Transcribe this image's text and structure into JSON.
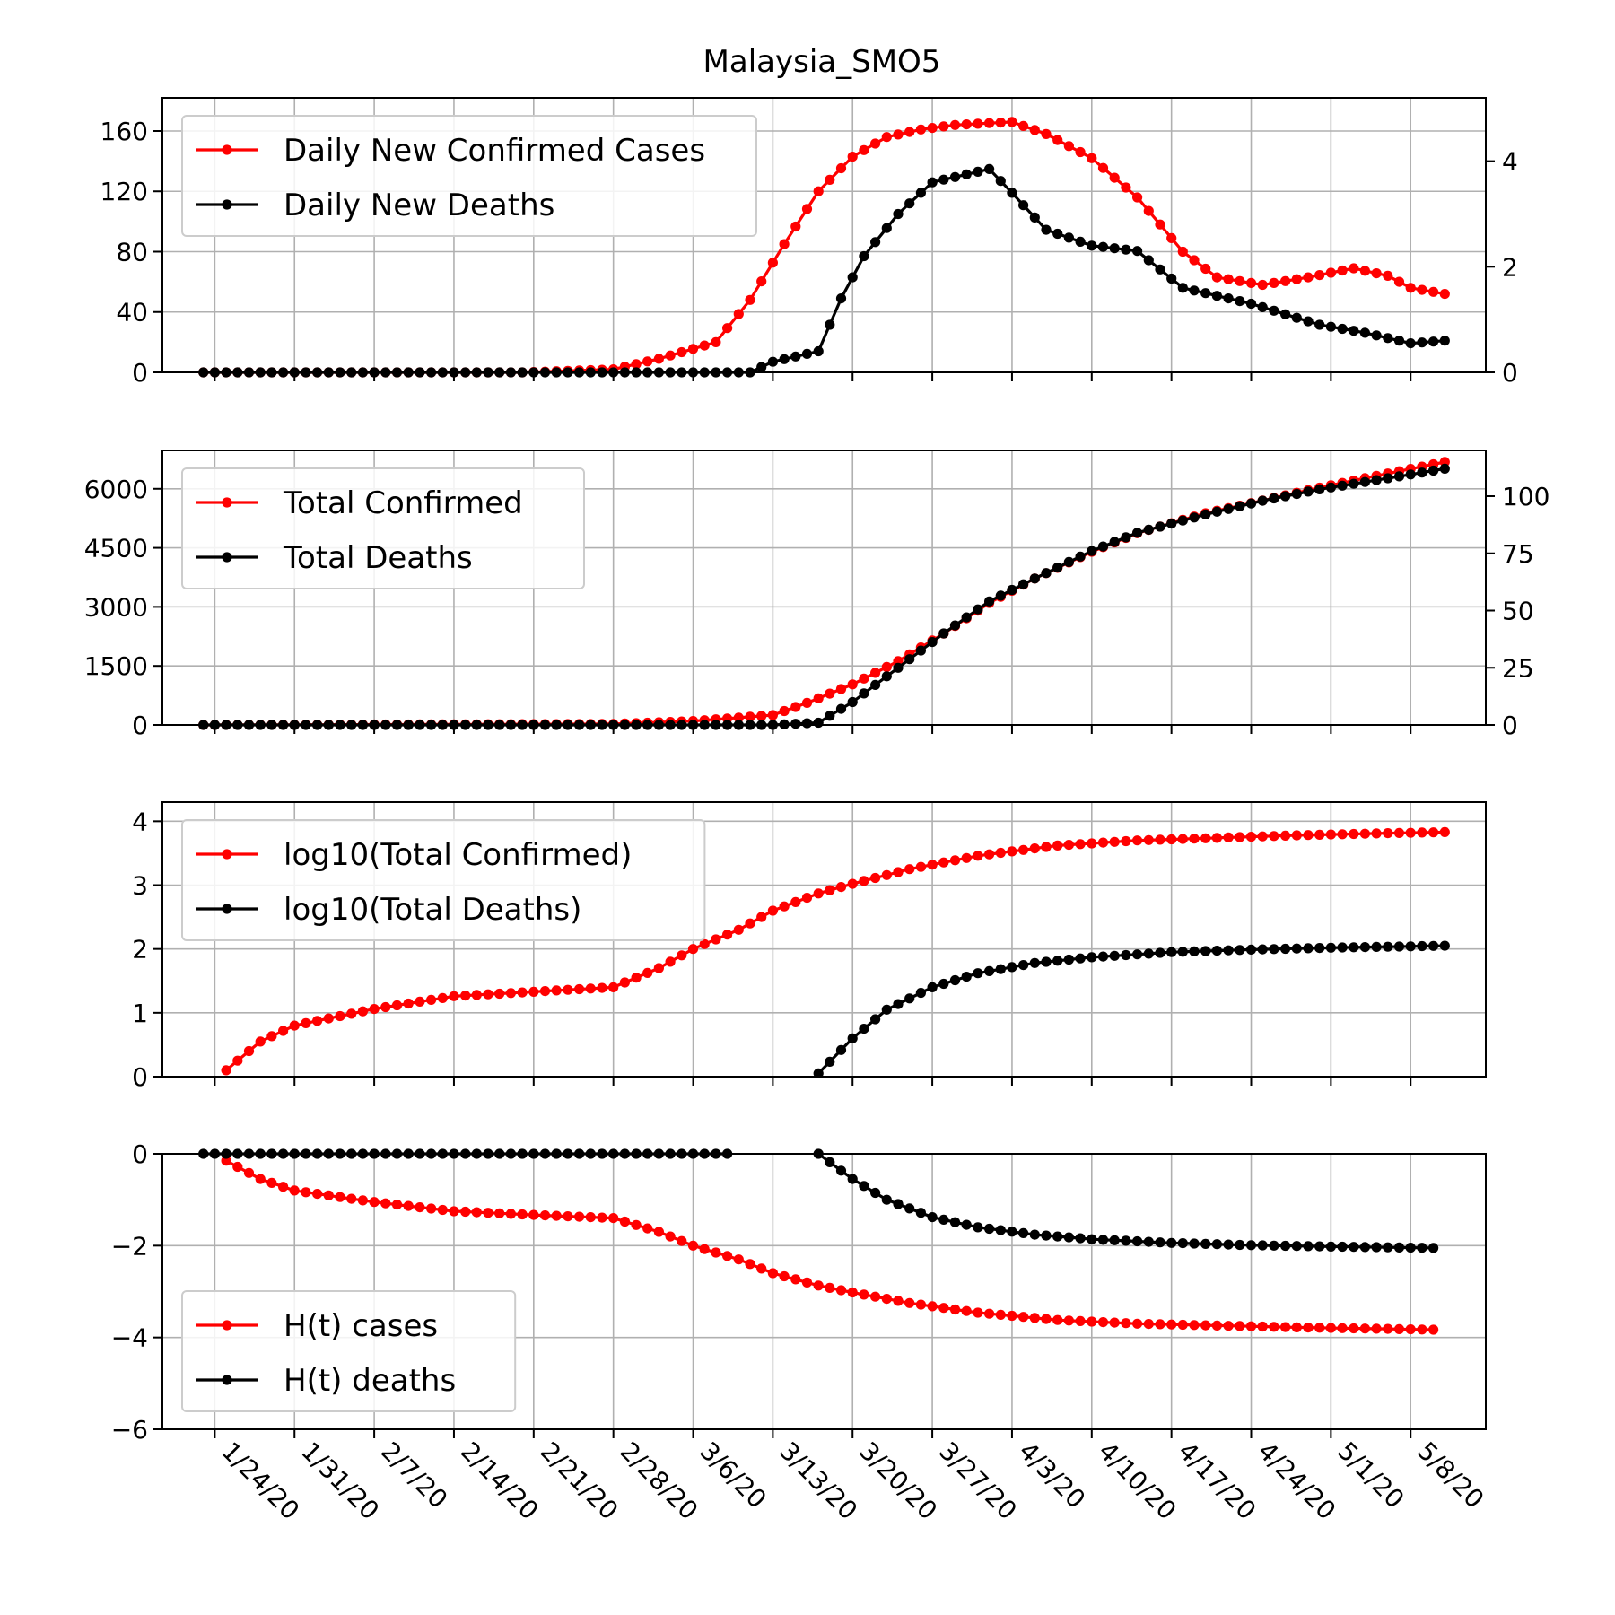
{
  "chart_data": [
    {
      "type": "line",
      "title": "Malaysia_SMO5",
      "x": {
        "start": "1/23/20",
        "end": "5/11/20",
        "tick_labels": [
          "1/24/20",
          "1/31/20",
          "2/7/20",
          "2/14/20",
          "2/21/20",
          "2/28/20",
          "3/6/20",
          "3/13/20",
          "3/20/20",
          "3/27/20",
          "4/3/20",
          "4/10/20",
          "4/17/20",
          "4/24/20",
          "5/1/20",
          "5/8/20"
        ]
      },
      "legend_loc": "upper left",
      "grid": true,
      "y_left": {
        "ylim": [
          0,
          182
        ],
        "ticks": [
          "0",
          "40",
          "80",
          "120",
          "160"
        ]
      },
      "y_right": {
        "ylim": [
          0,
          5.2
        ],
        "ticks": [
          "0",
          "2",
          "4"
        ]
      },
      "series": [
        {
          "name": "Daily New Confirmed Cases",
          "color": "#ff0000",
          "axis": "left",
          "keypoints": [
            [
              "1/23/20",
              0
            ],
            [
              "2/20/20",
              0
            ],
            [
              "2/28/20",
              2
            ],
            [
              "3/3/20",
              9
            ],
            [
              "3/8/20",
              20
            ],
            [
              "3/11/20",
              48
            ],
            [
              "3/14/20",
              85
            ],
            [
              "3/17/20",
              120
            ],
            [
              "3/20/20",
              143
            ],
            [
              "3/23/20",
              156
            ],
            [
              "3/26/20",
              161
            ],
            [
              "3/29/20",
              164
            ],
            [
              "4/3/20",
              166
            ],
            [
              "4/6/20",
              158
            ],
            [
              "4/10/20",
              142
            ],
            [
              "4/14/20",
              116
            ],
            [
              "4/18/20",
              80
            ],
            [
              "4/21/20",
              63
            ],
            [
              "4/25/20",
              58
            ],
            [
              "4/29/20",
              63
            ],
            [
              "5/3/20",
              69
            ],
            [
              "5/6/20",
              64
            ],
            [
              "5/8/20",
              56
            ],
            [
              "5/11/20",
              52
            ]
          ]
        },
        {
          "name": "Daily New Deaths",
          "color": "#000000",
          "axis": "right",
          "keypoints": [
            [
              "1/23/20",
              0
            ],
            [
              "3/11/20",
              0
            ],
            [
              "3/13/20",
              0.2
            ],
            [
              "3/17/20",
              0.4
            ],
            [
              "3/19/20",
              1.4
            ],
            [
              "3/21/20",
              2.2
            ],
            [
              "3/24/20",
              3.0
            ],
            [
              "3/27/20",
              3.6
            ],
            [
              "4/1/20",
              3.85
            ],
            [
              "4/3/20",
              3.4
            ],
            [
              "4/6/20",
              2.7
            ],
            [
              "4/10/20",
              2.4
            ],
            [
              "4/14/20",
              2.3
            ],
            [
              "4/18/20",
              1.6
            ],
            [
              "4/24/20",
              1.3
            ],
            [
              "4/30/20",
              0.9
            ],
            [
              "5/4/20",
              0.75
            ],
            [
              "5/8/20",
              0.55
            ],
            [
              "5/11/20",
              0.6
            ]
          ]
        }
      ]
    },
    {
      "type": "line",
      "legend_loc": "upper left",
      "grid": true,
      "y_left": {
        "ylim": [
          0,
          6975
        ],
        "ticks": [
          "0",
          "1500",
          "3000",
          "4500",
          "6000"
        ]
      },
      "y_right": {
        "ylim": [
          0,
          120
        ],
        "ticks": [
          "0",
          "25",
          "50",
          "75",
          "100"
        ]
      },
      "series": [
        {
          "name": "Total Confirmed",
          "color": "#ff0000",
          "axis": "left",
          "keypoints": [
            [
              "1/23/20",
              0
            ],
            [
              "2/28/20",
              25
            ],
            [
              "3/6/20",
              100
            ],
            [
              "3/13/20",
              250
            ],
            [
              "3/16/20",
              560
            ],
            [
              "3/20/20",
              1030
            ],
            [
              "3/24/20",
              1620
            ],
            [
              "3/28/20",
              2320
            ],
            [
              "4/1/20",
              3100
            ],
            [
              "4/5/20",
              3720
            ],
            [
              "4/10/20",
              4400
            ],
            [
              "4/14/20",
              4870
            ],
            [
              "4/20/20",
              5380
            ],
            [
              "4/25/20",
              5700
            ],
            [
              "4/30/20",
              6030
            ],
            [
              "5/5/20",
              6330
            ],
            [
              "5/11/20",
              6680
            ]
          ]
        },
        {
          "name": "Total Deaths",
          "color": "#000000",
          "axis": "right",
          "keypoints": [
            [
              "1/23/20",
              0
            ],
            [
              "3/13/20",
              0
            ],
            [
              "3/17/20",
              1
            ],
            [
              "3/20/20",
              10
            ],
            [
              "3/24/20",
              25
            ],
            [
              "3/28/20",
              40
            ],
            [
              "4/1/20",
              54
            ],
            [
              "4/5/20",
              64
            ],
            [
              "4/10/20",
              76
            ],
            [
              "4/14/20",
              84
            ],
            [
              "4/20/20",
              92
            ],
            [
              "4/25/20",
              98
            ],
            [
              "4/30/20",
              103
            ],
            [
              "5/5/20",
              107
            ],
            [
              "5/11/20",
              112
            ]
          ]
        }
      ]
    },
    {
      "type": "line",
      "legend_loc": "upper left",
      "grid": true,
      "y_left": {
        "ylim": [
          0,
          4.3
        ],
        "ticks": [
          "0",
          "1",
          "2",
          "3",
          "4"
        ]
      },
      "series": [
        {
          "name": "log10(Total Confirmed)",
          "color": "#ff0000",
          "axis": "left",
          "keypoints": [
            [
              "1/25/20",
              0.1
            ],
            [
              "1/28/20",
              0.55
            ],
            [
              "1/31/20",
              0.8
            ],
            [
              "2/7/20",
              1.06
            ],
            [
              "2/14/20",
              1.26
            ],
            [
              "2/21/20",
              1.33
            ],
            [
              "2/28/20",
              1.4
            ],
            [
              "3/3/20",
              1.7
            ],
            [
              "3/6/20",
              2.0
            ],
            [
              "3/10/20",
              2.3
            ],
            [
              "3/13/20",
              2.6
            ],
            [
              "3/17/20",
              2.87
            ],
            [
              "3/20/20",
              3.02
            ],
            [
              "3/25/20",
              3.25
            ],
            [
              "3/31/20",
              3.46
            ],
            [
              "4/7/20",
              3.62
            ],
            [
              "4/14/20",
              3.7
            ],
            [
              "4/21/20",
              3.74
            ],
            [
              "4/28/20",
              3.78
            ],
            [
              "5/5/20",
              3.81
            ],
            [
              "5/11/20",
              3.83
            ]
          ]
        },
        {
          "name": "log10(Total Deaths)",
          "color": "#000000",
          "axis": "left",
          "keypoints": [
            [
              "3/17/20",
              0.05
            ],
            [
              "3/20/20",
              0.6
            ],
            [
              "3/23/20",
              1.05
            ],
            [
              "3/27/20",
              1.4
            ],
            [
              "3/31/20",
              1.62
            ],
            [
              "4/5/20",
              1.78
            ],
            [
              "4/10/20",
              1.87
            ],
            [
              "4/17/20",
              1.95
            ],
            [
              "4/24/20",
              1.99
            ],
            [
              "5/1/20",
              2.02
            ],
            [
              "5/11/20",
              2.05
            ]
          ]
        }
      ]
    },
    {
      "type": "line",
      "legend_loc": "lower left",
      "grid": true,
      "y_left": {
        "ylim": [
          -6,
          0
        ],
        "ticks": [
          "0",
          "−2",
          "−4",
          "−6"
        ]
      },
      "series": [
        {
          "name": "H(t) cases",
          "color": "#ff0000",
          "axis": "left",
          "keypoints": [
            [
              "1/25/20",
              -0.15
            ],
            [
              "1/28/20",
              -0.55
            ],
            [
              "1/31/20",
              -0.8
            ],
            [
              "2/7/20",
              -1.05
            ],
            [
              "2/14/20",
              -1.25
            ],
            [
              "2/21/20",
              -1.33
            ],
            [
              "2/28/20",
              -1.4
            ],
            [
              "3/3/20",
              -1.7
            ],
            [
              "3/6/20",
              -2.0
            ],
            [
              "3/10/20",
              -2.3
            ],
            [
              "3/13/20",
              -2.6
            ],
            [
              "3/17/20",
              -2.87
            ],
            [
              "3/20/20",
              -3.02
            ],
            [
              "3/25/20",
              -3.25
            ],
            [
              "3/31/20",
              -3.46
            ],
            [
              "4/7/20",
              -3.62
            ],
            [
              "4/14/20",
              -3.7
            ],
            [
              "4/21/20",
              -3.74
            ],
            [
              "4/28/20",
              -3.78
            ],
            [
              "5/5/20",
              -3.81
            ],
            [
              "5/10/20",
              -3.83
            ]
          ]
        },
        {
          "name": "H(t) deaths",
          "color": "#000000",
          "axis": "left",
          "keypoints": [
            [
              "1/23/20",
              0
            ],
            [
              "3/9/20",
              0
            ]
          ],
          "keypoints_2": [
            [
              "3/17/20",
              0
            ],
            [
              "3/20/20",
              -0.55
            ],
            [
              "3/23/20",
              -1.0
            ],
            [
              "3/27/20",
              -1.38
            ],
            [
              "3/31/20",
              -1.6
            ],
            [
              "4/5/20",
              -1.76
            ],
            [
              "4/10/20",
              -1.86
            ],
            [
              "4/17/20",
              -1.94
            ],
            [
              "4/24/20",
              -1.99
            ],
            [
              "5/1/20",
              -2.02
            ],
            [
              "5/10/20",
              -2.05
            ]
          ]
        }
      ]
    }
  ]
}
